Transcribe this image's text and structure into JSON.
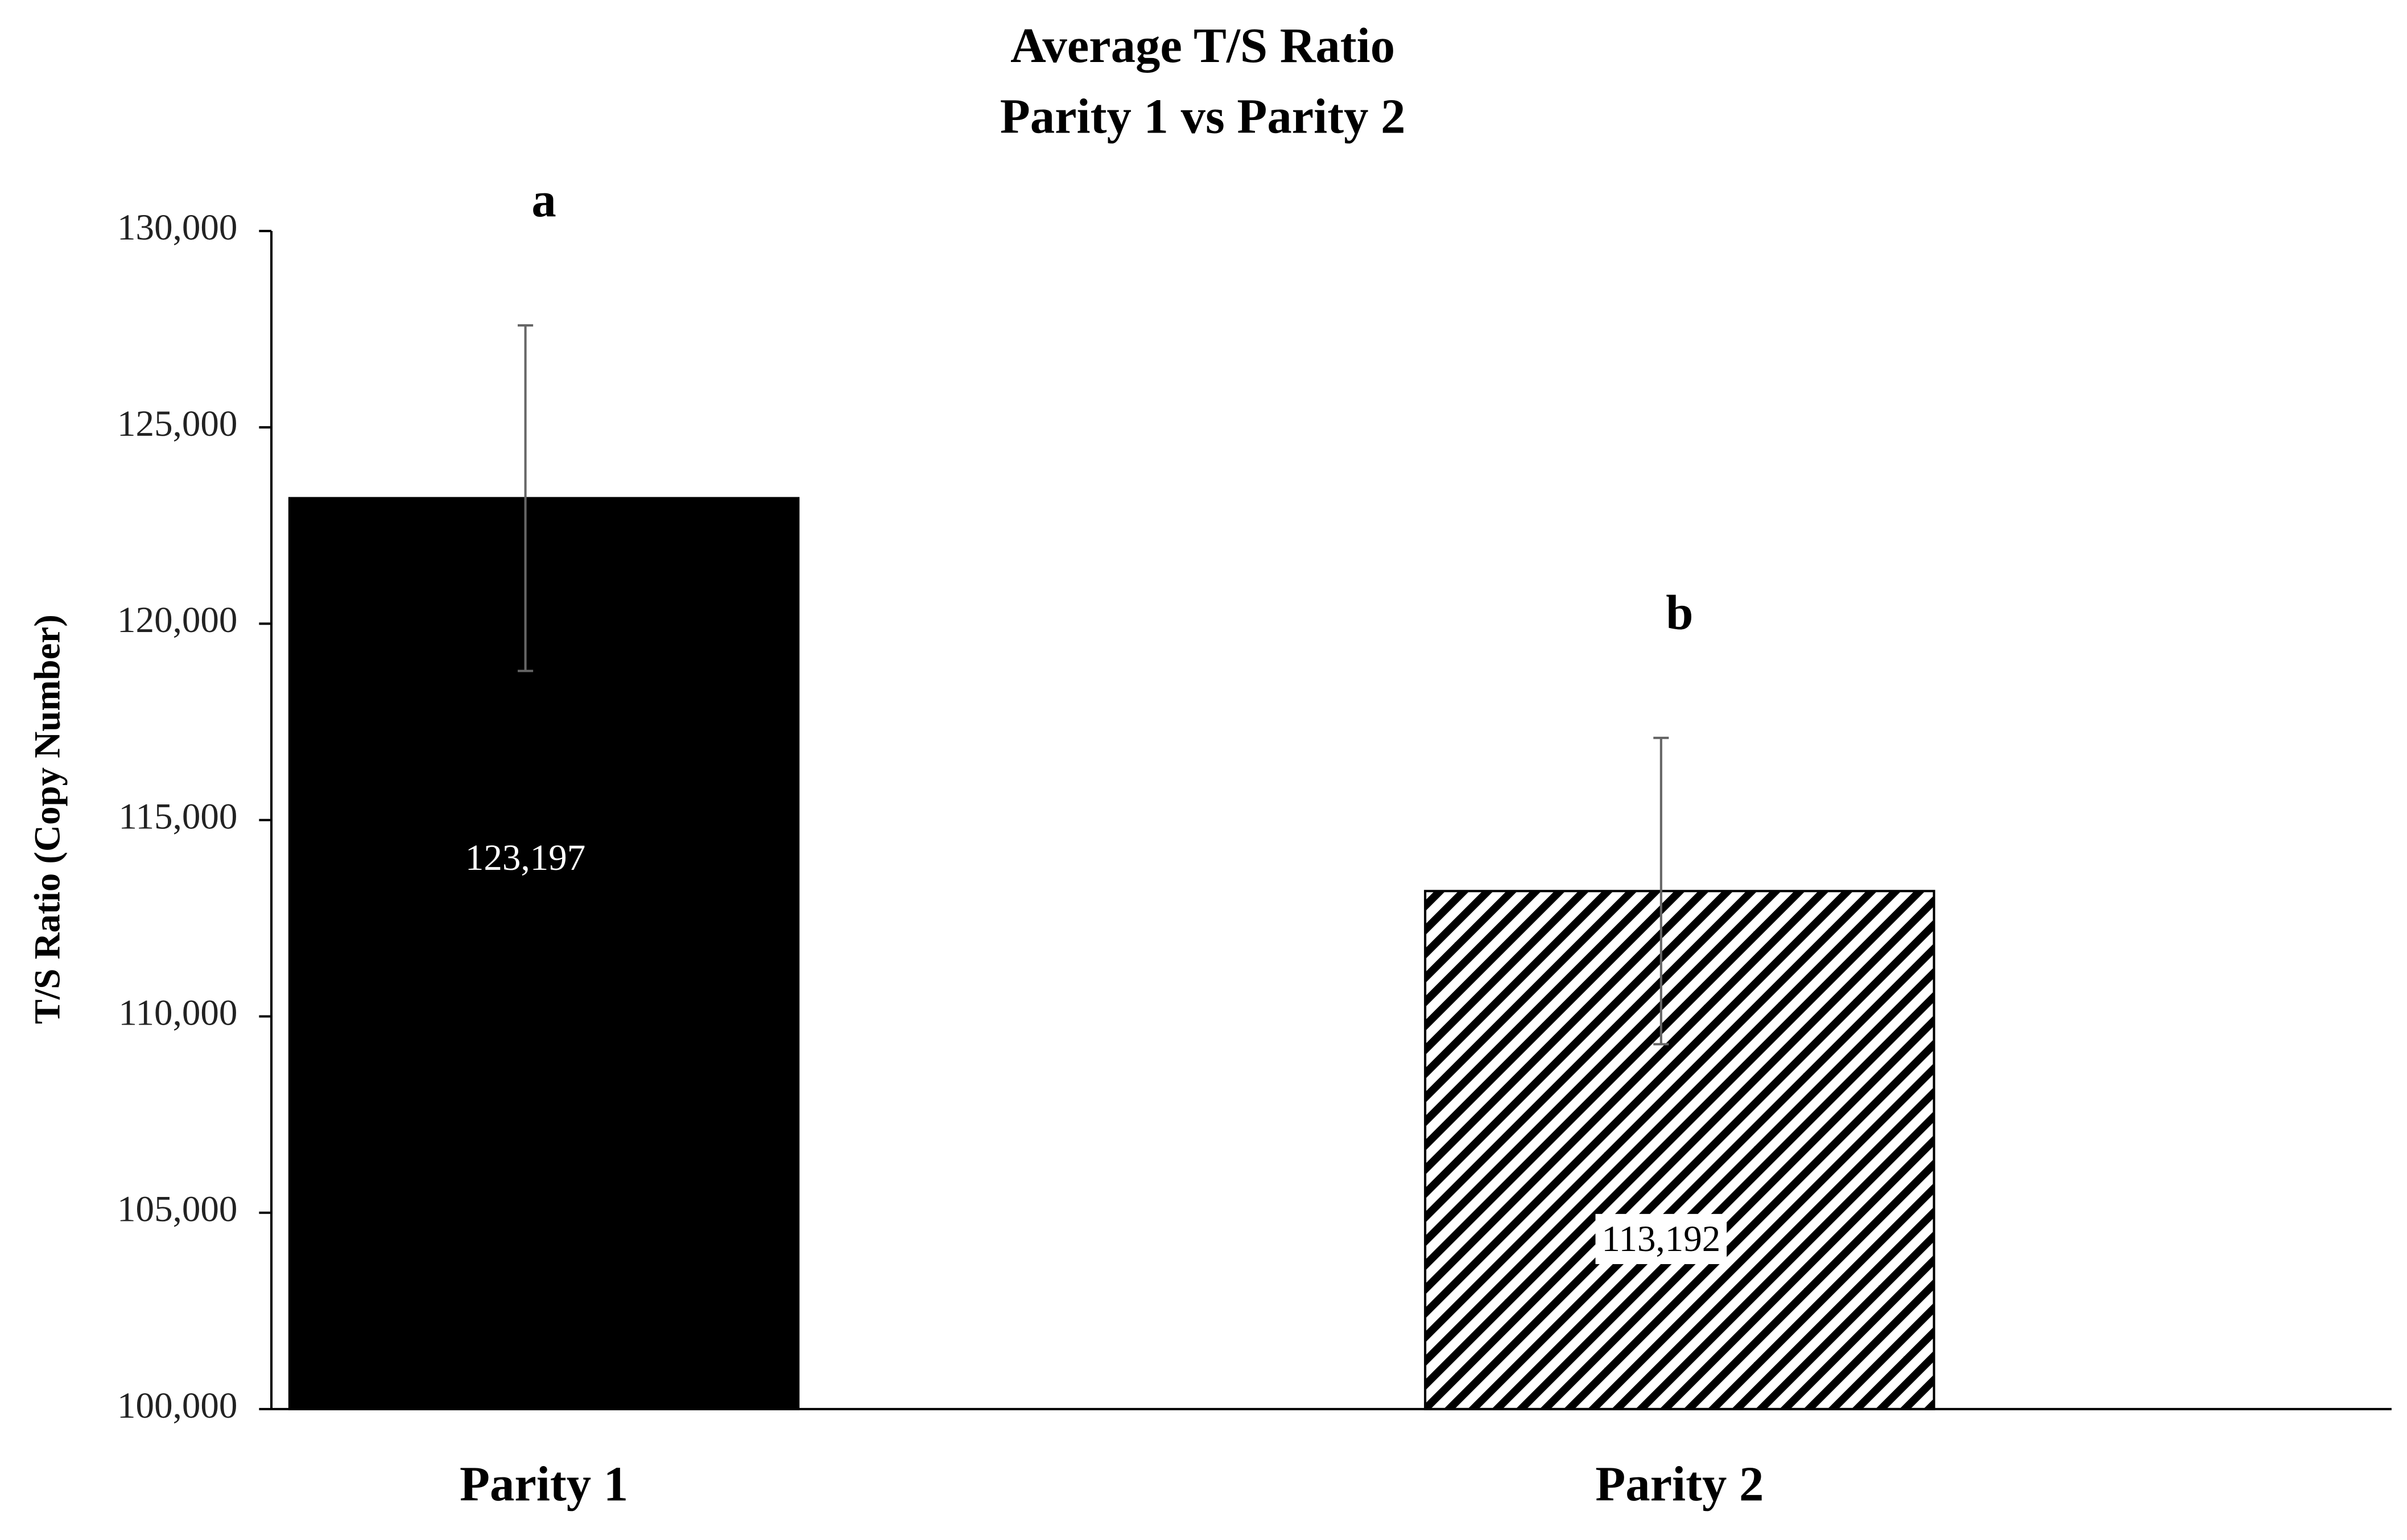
{
  "chart_data": {
    "type": "bar",
    "title": "Average T/S Ratio",
    "subtitle": "Parity 1 vs Parity 2",
    "ylabel": "T/S Ratio (Copy Number)",
    "categories": [
      "Parity 1",
      "Parity 2"
    ],
    "values": [
      123197,
      113192
    ],
    "value_labels": [
      "123,197",
      "113,192"
    ],
    "errors": [
      4400,
      3900
    ],
    "annotations": [
      "a",
      "b"
    ],
    "colors": [
      "#000000",
      "#000000"
    ],
    "hatch": [
      false,
      true
    ],
    "ylim": [
      100000,
      130000
    ],
    "yticks": [
      {
        "value": 100000,
        "label": "100,000"
      },
      {
        "value": 105000,
        "label": "105,000"
      },
      {
        "value": 110000,
        "label": "110,000"
      },
      {
        "value": 115000,
        "label": "115,000"
      },
      {
        "value": 120000,
        "label": "120,000"
      },
      {
        "value": 125000,
        "label": "125,000"
      },
      {
        "value": 130000,
        "label": "130,000"
      }
    ],
    "grid": false
  }
}
